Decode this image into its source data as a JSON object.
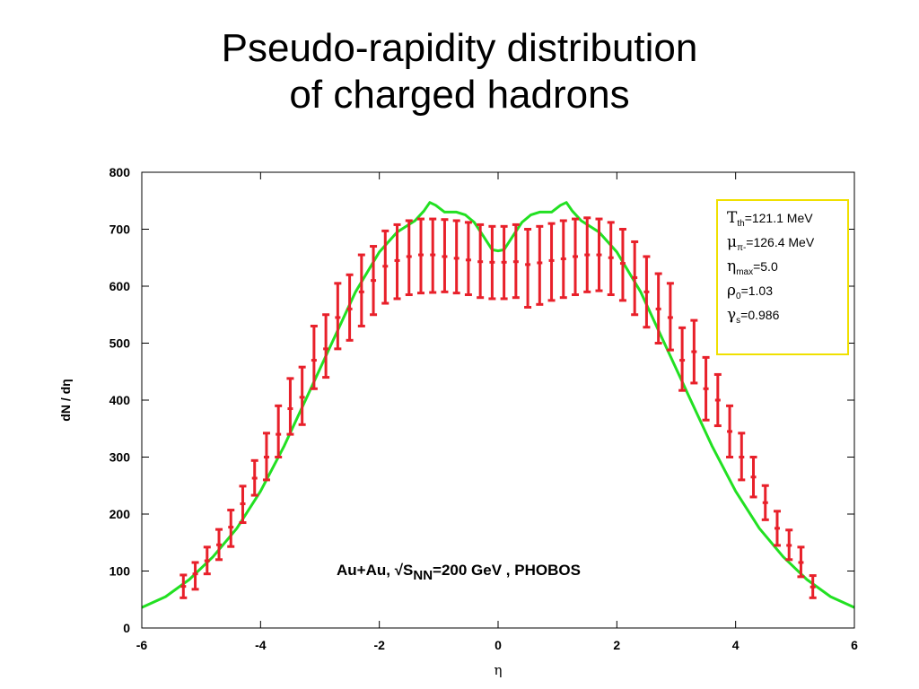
{
  "title": {
    "line1": "Pseudo-rapidity distribution",
    "line2": "of charged hadrons"
  },
  "colors": {
    "data": "#e8202a",
    "model": "#22e022",
    "legend_border": "#f0e000",
    "axis": "#000000"
  },
  "chart_data": {
    "type": "line",
    "xlabel": "η",
    "ylabel": "dN / dη",
    "xlim": [
      -6,
      6
    ],
    "ylim": [
      0,
      800
    ],
    "xticks": [
      -6,
      -4,
      -2,
      0,
      2,
      4,
      6
    ],
    "yticks": [
      0,
      100,
      200,
      300,
      400,
      500,
      600,
      700,
      800
    ],
    "annotation": {
      "prefix": "Au+Au, √S",
      "sub": "NN",
      "suffix": "=200 GeV , PHOBOS"
    },
    "parameters": [
      {
        "sym": "T",
        "sub": "th",
        "val": "=121.1  MeV"
      },
      {
        "sym": "μ",
        "sub": "π-",
        "val": "=126.4  MeV"
      },
      {
        "sym": "η",
        "sub": "max",
        "val": "=5.0"
      },
      {
        "sym": "ρ",
        "sub": "0",
        "val": "=1.03"
      },
      {
        "sym": "γ",
        "sub": "s",
        "val": "=0.986"
      }
    ],
    "series": [
      {
        "kind": "errorbars",
        "points": [
          {
            "x": -5.3,
            "y": 73,
            "lo": 53,
            "hi": 93
          },
          {
            "x": -5.1,
            "y": 95,
            "lo": 68,
            "hi": 115
          },
          {
            "x": -4.9,
            "y": 118,
            "lo": 95,
            "hi": 142
          },
          {
            "x": -4.7,
            "y": 146,
            "lo": 120,
            "hi": 173
          },
          {
            "x": -4.5,
            "y": 177,
            "lo": 143,
            "hi": 207
          },
          {
            "x": -4.3,
            "y": 218,
            "lo": 185,
            "hi": 249
          },
          {
            "x": -4.1,
            "y": 263,
            "lo": 233,
            "hi": 294
          },
          {
            "x": -3.9,
            "y": 300,
            "lo": 260,
            "hi": 342
          },
          {
            "x": -3.7,
            "y": 340,
            "lo": 300,
            "hi": 390
          },
          {
            "x": -3.5,
            "y": 385,
            "lo": 340,
            "hi": 438
          },
          {
            "x": -3.3,
            "y": 405,
            "lo": 357,
            "hi": 458
          },
          {
            "x": -3.1,
            "y": 470,
            "lo": 420,
            "hi": 530
          },
          {
            "x": -2.9,
            "y": 490,
            "lo": 440,
            "hi": 550
          },
          {
            "x": -2.7,
            "y": 545,
            "lo": 490,
            "hi": 605
          },
          {
            "x": -2.5,
            "y": 560,
            "lo": 505,
            "hi": 620
          },
          {
            "x": -2.3,
            "y": 590,
            "lo": 530,
            "hi": 655
          },
          {
            "x": -2.1,
            "y": 610,
            "lo": 550,
            "hi": 670
          },
          {
            "x": -1.9,
            "y": 635,
            "lo": 570,
            "hi": 697
          },
          {
            "x": -1.7,
            "y": 645,
            "lo": 578,
            "hi": 708
          },
          {
            "x": -1.5,
            "y": 652,
            "lo": 585,
            "hi": 715
          },
          {
            "x": -1.3,
            "y": 655,
            "lo": 588,
            "hi": 718
          },
          {
            "x": -1.1,
            "y": 655,
            "lo": 589,
            "hi": 718
          },
          {
            "x": -0.9,
            "y": 652,
            "lo": 590,
            "hi": 717
          },
          {
            "x": -0.7,
            "y": 649,
            "lo": 588,
            "hi": 715
          },
          {
            "x": -0.5,
            "y": 646,
            "lo": 585,
            "hi": 712
          },
          {
            "x": -0.3,
            "y": 643,
            "lo": 580,
            "hi": 708
          },
          {
            "x": -0.1,
            "y": 642,
            "lo": 578,
            "hi": 705
          },
          {
            "x": 0.1,
            "y": 642,
            "lo": 578,
            "hi": 705
          },
          {
            "x": 0.3,
            "y": 643,
            "lo": 580,
            "hi": 708
          },
          {
            "x": 0.5,
            "y": 638,
            "lo": 563,
            "hi": 700
          },
          {
            "x": 0.7,
            "y": 641,
            "lo": 568,
            "hi": 705
          },
          {
            "x": 0.9,
            "y": 645,
            "lo": 575,
            "hi": 710
          },
          {
            "x": 1.1,
            "y": 648,
            "lo": 580,
            "hi": 715
          },
          {
            "x": 1.3,
            "y": 652,
            "lo": 585,
            "hi": 718
          },
          {
            "x": 1.5,
            "y": 655,
            "lo": 590,
            "hi": 720
          },
          {
            "x": 1.7,
            "y": 655,
            "lo": 592,
            "hi": 718
          },
          {
            "x": 1.9,
            "y": 650,
            "lo": 585,
            "hi": 712
          },
          {
            "x": 2.1,
            "y": 640,
            "lo": 575,
            "hi": 700
          },
          {
            "x": 2.3,
            "y": 615,
            "lo": 550,
            "hi": 678
          },
          {
            "x": 2.5,
            "y": 590,
            "lo": 528,
            "hi": 652
          },
          {
            "x": 2.7,
            "y": 560,
            "lo": 500,
            "hi": 622
          },
          {
            "x": 2.9,
            "y": 545,
            "lo": 488,
            "hi": 605
          },
          {
            "x": 3.1,
            "y": 470,
            "lo": 417,
            "hi": 527
          },
          {
            "x": 3.3,
            "y": 485,
            "lo": 430,
            "hi": 540
          },
          {
            "x": 3.5,
            "y": 420,
            "lo": 365,
            "hi": 475
          },
          {
            "x": 3.7,
            "y": 400,
            "lo": 355,
            "hi": 445
          },
          {
            "x": 3.9,
            "y": 345,
            "lo": 300,
            "hi": 390
          },
          {
            "x": 4.1,
            "y": 300,
            "lo": 260,
            "hi": 342
          },
          {
            "x": 4.3,
            "y": 265,
            "lo": 230,
            "hi": 300
          },
          {
            "x": 4.5,
            "y": 220,
            "lo": 190,
            "hi": 250
          },
          {
            "x": 4.7,
            "y": 175,
            "lo": 145,
            "hi": 205
          },
          {
            "x": 4.9,
            "y": 145,
            "lo": 120,
            "hi": 172
          },
          {
            "x": 5.1,
            "y": 115,
            "lo": 90,
            "hi": 142
          },
          {
            "x": 5.3,
            "y": 72,
            "lo": 53,
            "hi": 92
          }
        ]
      },
      {
        "kind": "curve",
        "x": [
          -6,
          -5.6,
          -5.2,
          -4.8,
          -4.4,
          -4.0,
          -3.6,
          -3.2,
          -2.8,
          -2.4,
          -2.0,
          -1.7,
          -1.4,
          -1.25,
          -1.15,
          -1.05,
          -0.9,
          -0.7,
          -0.55,
          -0.4,
          -0.25,
          -0.1,
          0,
          0.1,
          0.25,
          0.4,
          0.55,
          0.7,
          0.9,
          1.05,
          1.15,
          1.25,
          1.4,
          1.7,
          2.0,
          2.4,
          2.8,
          3.2,
          3.6,
          4.0,
          4.4,
          4.8,
          5.2,
          5.6,
          6
        ],
        "y": [
          36,
          55,
          85,
          125,
          175,
          240,
          320,
          410,
          500,
          590,
          660,
          695,
          715,
          732,
          747,
          742,
          730,
          730,
          725,
          712,
          688,
          664,
          662,
          664,
          688,
          712,
          725,
          730,
          730,
          742,
          747,
          732,
          715,
          695,
          660,
          590,
          500,
          410,
          320,
          240,
          175,
          125,
          85,
          55,
          36
        ]
      }
    ]
  }
}
